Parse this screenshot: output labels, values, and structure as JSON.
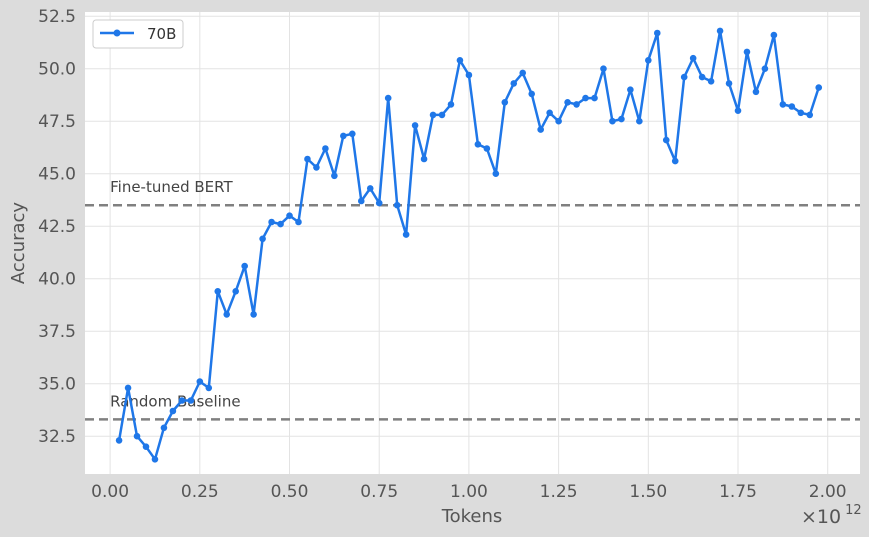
{
  "chart_data": {
    "type": "line",
    "xlabel": "Tokens",
    "ylabel": "Accuracy",
    "x_multiplier_base": "×10",
    "x_multiplier_exp": "12",
    "xlim": [
      -0.07,
      2.09
    ],
    "ylim": [
      30.7,
      52.7
    ],
    "xticks": [
      0.0,
      0.25,
      0.5,
      0.75,
      1.0,
      1.25,
      1.5,
      1.75,
      2.0
    ],
    "xtick_labels": [
      "0.00",
      "0.25",
      "0.50",
      "0.75",
      "1.00",
      "1.25",
      "1.50",
      "1.75",
      "2.00"
    ],
    "yticks": [
      32.5,
      35.0,
      37.5,
      40.0,
      42.5,
      45.0,
      47.5,
      50.0,
      52.5
    ],
    "ytick_labels": [
      "32.5",
      "35.0",
      "37.5",
      "40.0",
      "42.5",
      "45.0",
      "47.5",
      "50.0",
      "52.5"
    ],
    "grid": true,
    "legend_position": "top-left",
    "series": [
      {
        "name": "70B",
        "color": "#1f77e8",
        "x": [
          0.025,
          0.05,
          0.075,
          0.1,
          0.125,
          0.15,
          0.175,
          0.2,
          0.225,
          0.25,
          0.275,
          0.3,
          0.325,
          0.35,
          0.375,
          0.4,
          0.425,
          0.45,
          0.475,
          0.5,
          0.525,
          0.55,
          0.575,
          0.6,
          0.625,
          0.65,
          0.675,
          0.7,
          0.725,
          0.75,
          0.775,
          0.8,
          0.825,
          0.85,
          0.875,
          0.9,
          0.925,
          0.95,
          0.975,
          1.0,
          1.025,
          1.05,
          1.075,
          1.1,
          1.125,
          1.15,
          1.175,
          1.2,
          1.225,
          1.25,
          1.275,
          1.3,
          1.325,
          1.35,
          1.375,
          1.4,
          1.425,
          1.45,
          1.475,
          1.5,
          1.525,
          1.55,
          1.575,
          1.6,
          1.625,
          1.65,
          1.675,
          1.7,
          1.725,
          1.75,
          1.775,
          1.8,
          1.825,
          1.85,
          1.875,
          1.9,
          1.925,
          1.95,
          1.975
        ],
        "y": [
          32.3,
          34.8,
          32.5,
          32.0,
          31.4,
          32.9,
          33.7,
          34.2,
          34.2,
          35.1,
          34.8,
          39.4,
          38.3,
          39.4,
          40.6,
          38.3,
          41.9,
          42.7,
          42.6,
          43.0,
          42.7,
          45.7,
          45.3,
          46.2,
          44.9,
          46.8,
          46.9,
          43.7,
          44.3,
          43.6,
          48.6,
          43.5,
          42.1,
          47.3,
          45.7,
          47.8,
          47.8,
          48.3,
          50.4,
          49.7,
          46.4,
          46.2,
          45.0,
          48.4,
          49.3,
          49.8,
          48.8,
          47.1,
          47.9,
          47.5,
          48.4,
          48.3,
          48.6,
          48.6,
          50.0,
          47.5,
          47.6,
          49.0,
          47.5,
          50.4,
          51.7,
          46.6,
          45.6,
          49.6,
          50.5,
          49.6,
          49.4,
          51.8,
          49.3,
          48.0,
          50.8,
          48.9,
          50.0,
          51.6,
          48.3,
          48.2,
          47.9,
          47.8,
          49.1
        ]
      }
    ],
    "reference_lines": [
      {
        "label": "Fine-tuned BERT",
        "y": 43.5,
        "color": "#808080"
      },
      {
        "label": "Random Baseline",
        "y": 33.3,
        "color": "#808080"
      }
    ]
  }
}
